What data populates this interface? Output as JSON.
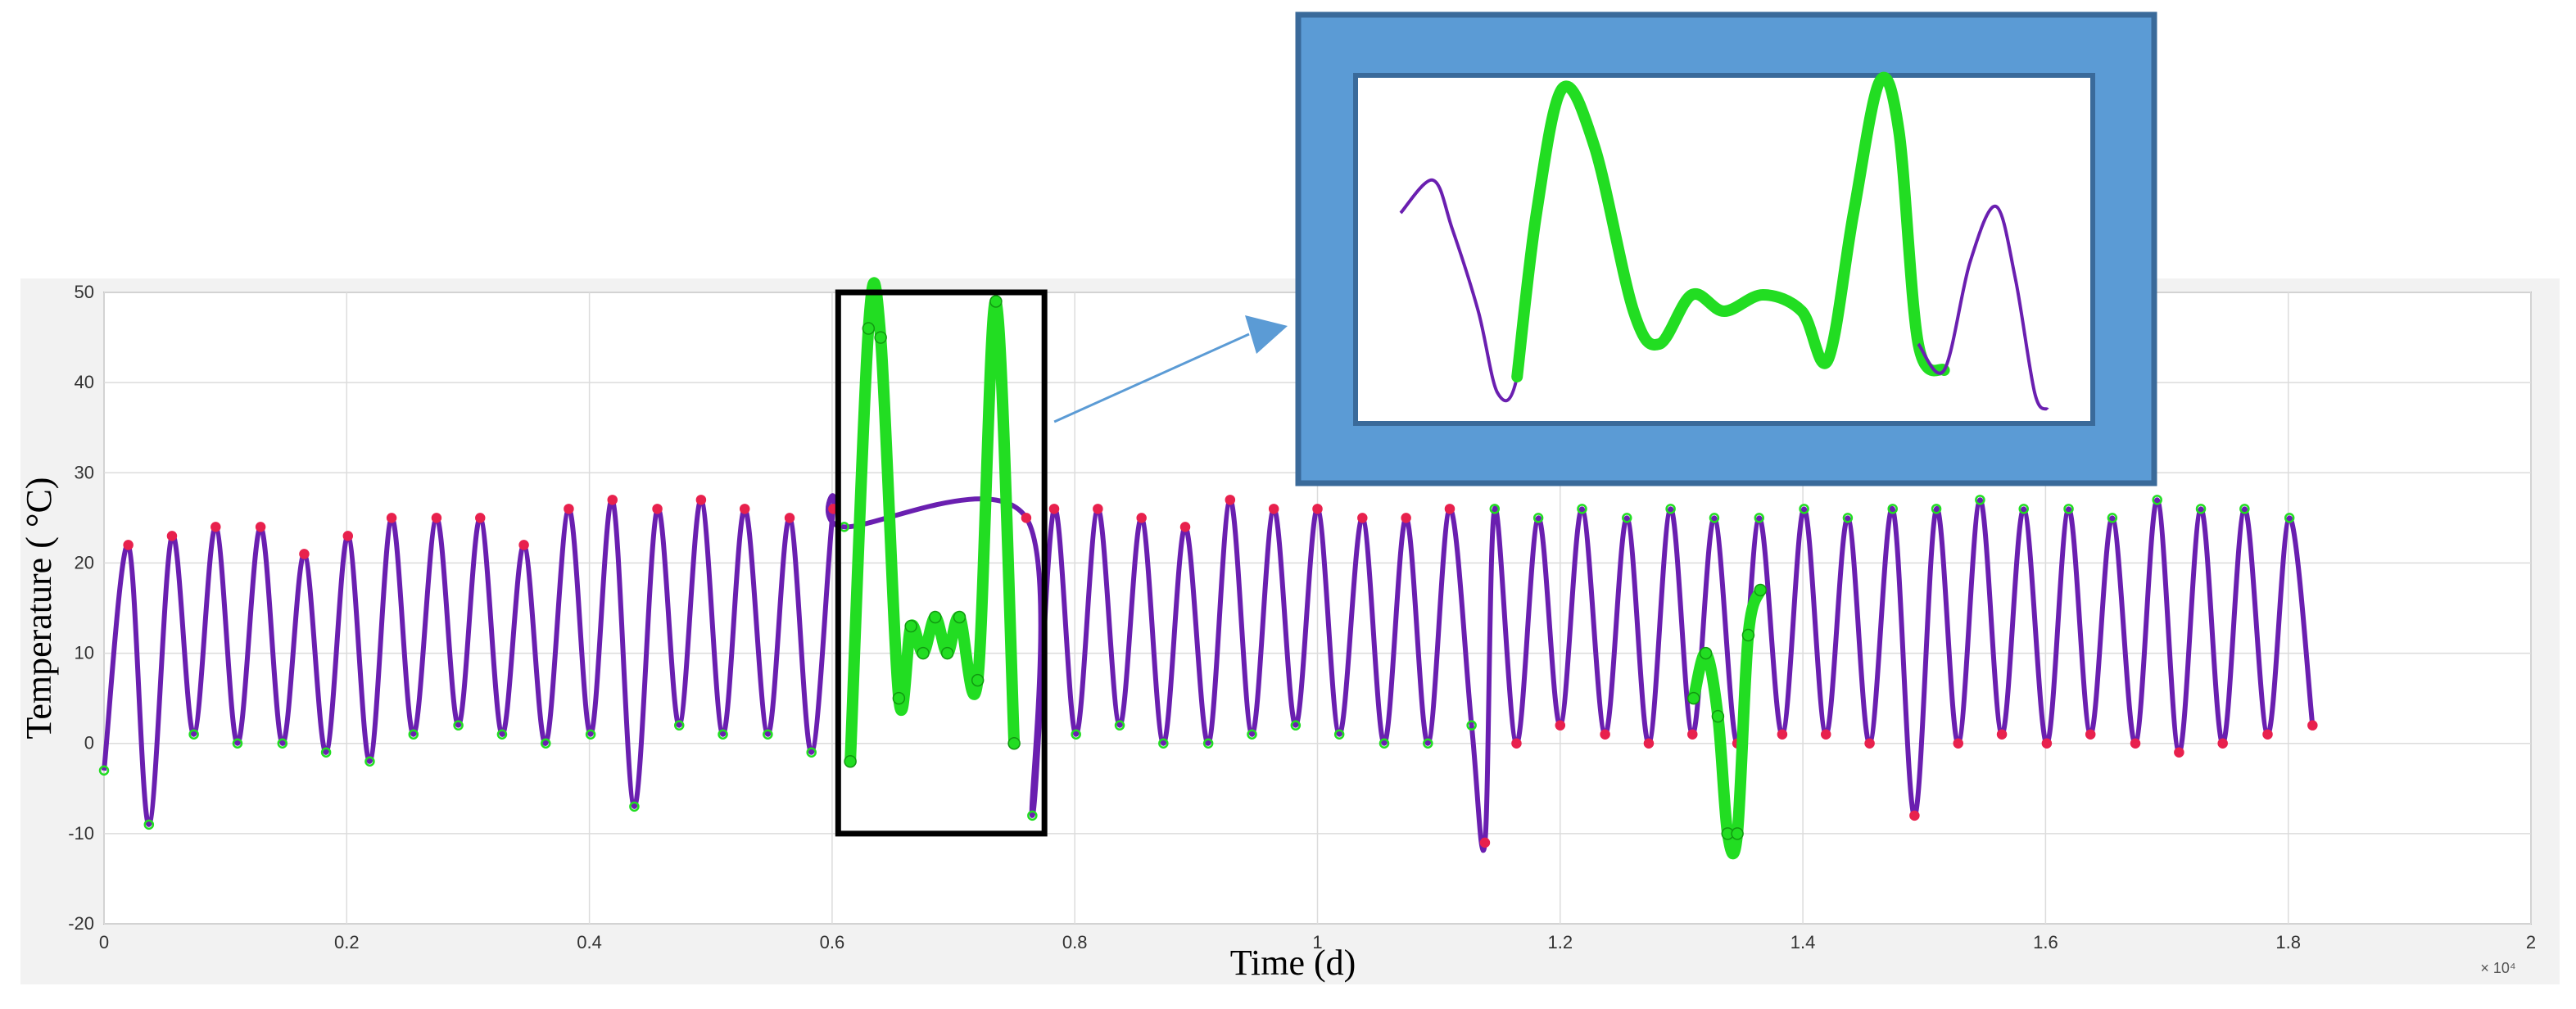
{
  "chart_data": {
    "type": "line",
    "title": "",
    "xlabel": "Time (d)",
    "ylabel": "Temperature ( °C)",
    "xlim": [
      0,
      20000
    ],
    "ylim": [
      -20,
      50
    ],
    "x_ticks": [
      0,
      2000,
      4000,
      6000,
      8000,
      10000,
      12000,
      14000,
      16000,
      18000,
      20000
    ],
    "x_tick_labels": [
      "0",
      "0.2",
      "0.4",
      "0.6",
      "0.8",
      "1",
      "1.2",
      "1.4",
      "1.6",
      "1.8",
      "2"
    ],
    "x_exponent_label": "× 10⁴",
    "y_ticks": [
      -20,
      -10,
      0,
      10,
      20,
      30,
      40,
      50
    ],
    "y_tick_labels": [
      "-20",
      "-10",
      "0",
      "10",
      "20",
      "30",
      "40",
      "50"
    ],
    "grid": true,
    "colors": {
      "observed": "#6a1fb0",
      "markers": "#e8214d",
      "highlight": "#22dd22",
      "zoom_frame": "#5b9bd5",
      "zoom_border": "#3a6a9a",
      "box": "#000000",
      "arrow": "#5b9bd5"
    },
    "series": [
      {
        "role": "observed",
        "x": [
          0,
          200,
          370,
          560,
          740,
          920,
          1100,
          1290,
          1470,
          1650,
          1830,
          2010,
          2190,
          2370,
          2550,
          2740,
          2920,
          3100,
          3280,
          3460,
          3640,
          3830,
          4010,
          4190,
          4370,
          4560,
          4740,
          4920,
          5100,
          5280,
          5470,
          5650,
          5830,
          6010,
          6100,
          7600,
          7650,
          7830,
          8010,
          8190,
          8370,
          8550,
          8730,
          8910,
          9100,
          9280,
          9460,
          9640,
          9820,
          10000,
          10180,
          10370,
          10550,
          10730,
          10910,
          11090,
          11270,
          11380,
          11460,
          11640,
          11820,
          12000,
          12180,
          12370,
          12550,
          12730,
          12910,
          13090,
          13270,
          13460,
          13640,
          13830,
          14010,
          14190,
          14370,
          14550,
          14740,
          14920,
          15100,
          15280,
          15460,
          15640,
          15820,
          16010,
          16190,
          16370,
          16550,
          16740,
          16920,
          17100,
          17280,
          17460,
          17640,
          17830,
          18010,
          18200
        ],
        "y": [
          -3,
          22,
          -9,
          23,
          1,
          24,
          0,
          24,
          0,
          21,
          -1,
          23,
          -2,
          25,
          1,
          25,
          2,
          25,
          1,
          22,
          0,
          26,
          1,
          27,
          -7,
          26,
          2,
          27,
          1,
          26,
          1,
          25,
          -1,
          26,
          24,
          25,
          -8,
          26,
          1,
          26,
          2,
          25,
          0,
          24,
          0,
          27,
          1,
          26,
          2,
          26,
          1,
          25,
          0,
          25,
          0,
          26,
          2,
          -11,
          26,
          0,
          25,
          2,
          26,
          1,
          25,
          0,
          26,
          1,
          25,
          0,
          25,
          1,
          26,
          1,
          25,
          0,
          26,
          -8,
          26,
          0,
          27,
          1,
          26,
          0,
          26,
          1,
          25,
          0,
          27,
          -1,
          26,
          0,
          26,
          1,
          25,
          2
        ]
      },
      {
        "role": "highlight-window",
        "x": [
          6150,
          6300,
          6400,
          6550,
          6650,
          6750,
          6850,
          6950,
          7050,
          7200,
          7350,
          7500
        ],
        "y": [
          -2,
          46,
          45,
          5,
          13,
          10,
          14,
          10,
          14,
          7,
          49,
          0
        ]
      },
      {
        "role": "highlight-dip",
        "x": [
          13100,
          13200,
          13300,
          13380,
          13460,
          13550,
          13650
        ],
        "y": [
          5,
          10,
          3,
          -10,
          -10,
          12,
          17
        ]
      }
    ],
    "annotations": {
      "box_x_range": [
        6050,
        7750
      ],
      "box_y_range": [
        -10,
        50
      ],
      "zoom_inset": {
        "x": [
          0,
          5,
          8,
          12,
          15,
          18,
          21,
          25,
          30,
          36,
          40,
          45,
          50,
          56,
          62,
          66,
          70,
          74,
          77,
          80,
          84,
          88,
          92,
          95,
          98,
          100
        ],
        "y": [
          60,
          70,
          55,
          30,
          5,
          10,
          60,
          98,
          80,
          30,
          20,
          35,
          30,
          35,
          30,
          15,
          60,
          100,
          85,
          20,
          12,
          45,
          62,
          40,
          5,
          0
        ]
      }
    }
  }
}
